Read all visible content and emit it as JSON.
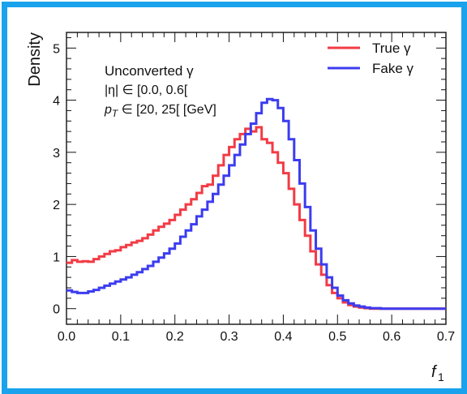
{
  "frame": {
    "border_color": "#1aa3ec"
  },
  "chart_data": {
    "type": "line",
    "drawstyle": "steps",
    "title": "",
    "xlabel": "f",
    "xlabel_sub": "1",
    "ylabel": "Density",
    "xlim": [
      0.0,
      0.7
    ],
    "ylim": [
      -0.3,
      5.3
    ],
    "xticks": [
      0.0,
      0.1,
      0.2,
      0.3,
      0.4,
      0.5,
      0.6,
      0.7
    ],
    "xtick_labels": [
      "0.0",
      "0.1",
      "0.2",
      "0.3",
      "0.4",
      "0.5",
      "0.6",
      "0.7"
    ],
    "yticks": [
      0,
      1,
      2,
      3,
      4,
      5
    ],
    "ytick_labels": [
      "0",
      "1",
      "2",
      "3",
      "4",
      "5"
    ],
    "grid": false,
    "legend_position": "top-right",
    "annotations": [
      {
        "text": "Unconverted γ"
      },
      {
        "text": "|η| ∈ [0.0, 0.6["
      },
      {
        "text": "p",
        "sub": "T",
        "rest": " ∈ [20, 25[ [GeV]"
      }
    ],
    "bin_width": 0.01,
    "bin_edges_start": 0.0,
    "series": [
      {
        "name": "True γ",
        "color": "#f23b45",
        "values": [
          0.88,
          0.93,
          0.9,
          0.91,
          0.9,
          0.95,
          1.0,
          1.05,
          1.1,
          1.12,
          1.18,
          1.22,
          1.27,
          1.3,
          1.35,
          1.42,
          1.5,
          1.57,
          1.63,
          1.7,
          1.8,
          1.9,
          2.0,
          2.1,
          2.22,
          2.35,
          2.38,
          2.55,
          2.75,
          2.95,
          3.1,
          3.25,
          3.35,
          3.45,
          3.4,
          3.48,
          3.25,
          3.18,
          3.0,
          2.8,
          2.6,
          2.3,
          2.0,
          1.7,
          1.4,
          1.1,
          0.85,
          0.65,
          0.45,
          0.3,
          0.2,
          0.12,
          0.07,
          0.04,
          0.02,
          0.01,
          0.0,
          0.0,
          0.0,
          0.0,
          0.0,
          0.0,
          0.0,
          0.0,
          0.0,
          0.0,
          0.0,
          0.0,
          0.0,
          0.0
        ]
      },
      {
        "name": "Fake γ",
        "color": "#3c3cf0",
        "values": [
          0.35,
          0.32,
          0.3,
          0.3,
          0.33,
          0.36,
          0.4,
          0.44,
          0.48,
          0.52,
          0.56,
          0.6,
          0.65,
          0.7,
          0.76,
          0.82,
          0.9,
          0.98,
          1.06,
          1.15,
          1.25,
          1.38,
          1.5,
          1.62,
          1.77,
          1.9,
          2.05,
          2.2,
          2.38,
          2.55,
          2.75,
          2.95,
          3.15,
          3.35,
          3.55,
          3.75,
          3.95,
          4.02,
          4.0,
          3.85,
          3.6,
          3.25,
          2.85,
          2.4,
          1.95,
          1.5,
          1.15,
          0.85,
          0.6,
          0.4,
          0.25,
          0.16,
          0.1,
          0.06,
          0.04,
          0.02,
          0.01,
          0.01,
          0.0,
          0.0,
          0.0,
          0.0,
          0.0,
          0.0,
          0.0,
          0.0,
          0.0,
          0.0,
          0.0,
          0.0
        ]
      }
    ]
  }
}
